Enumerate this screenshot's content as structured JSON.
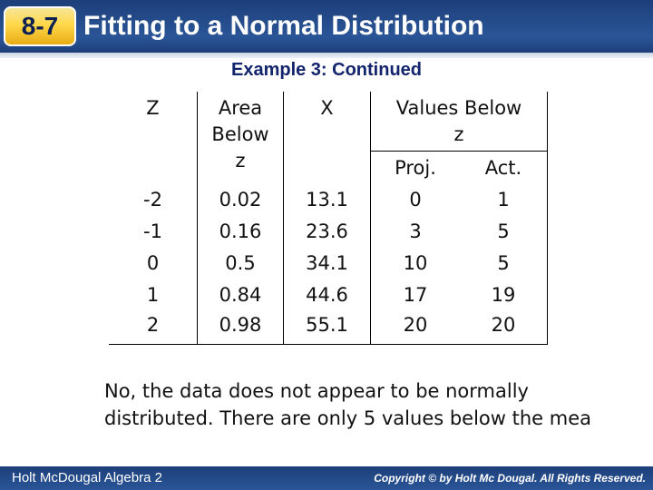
{
  "header": {
    "lesson_number": "8-7",
    "title": "Fitting to a Normal Distribution"
  },
  "subtitle": "Example 3: Continued",
  "table": {
    "headers": {
      "z": "Z",
      "area_line1": "Area",
      "area_line2": "Below",
      "area_line3": "z",
      "x": "X",
      "values_below_line1": "Values Below",
      "values_below_line2": "z",
      "proj": "Proj.",
      "act": "Act."
    },
    "rows": [
      {
        "z": "-2",
        "area": "0.02",
        "x": "13.1",
        "proj": "0",
        "act": "1"
      },
      {
        "z": "-1",
        "area": "0.16",
        "x": "23.6",
        "proj": "3",
        "act": "5"
      },
      {
        "z": "0",
        "area": "0.5",
        "x": "34.1",
        "proj": "10",
        "act": "5"
      },
      {
        "z": "1",
        "area": "0.84",
        "x": "44.6",
        "proj": "17",
        "act": "19"
      },
      {
        "z": "2",
        "area": "0.98",
        "x": "55.1",
        "proj": "20",
        "act": "20"
      }
    ]
  },
  "note": {
    "line1": "No, the data does not appear to be normally",
    "line2": "distributed. There are only 5 values below the mea"
  },
  "footer": {
    "left": "Holt McDougal Algebra 2",
    "right": "Copyright © by Holt Mc Dougal. All Rights Reserved."
  }
}
